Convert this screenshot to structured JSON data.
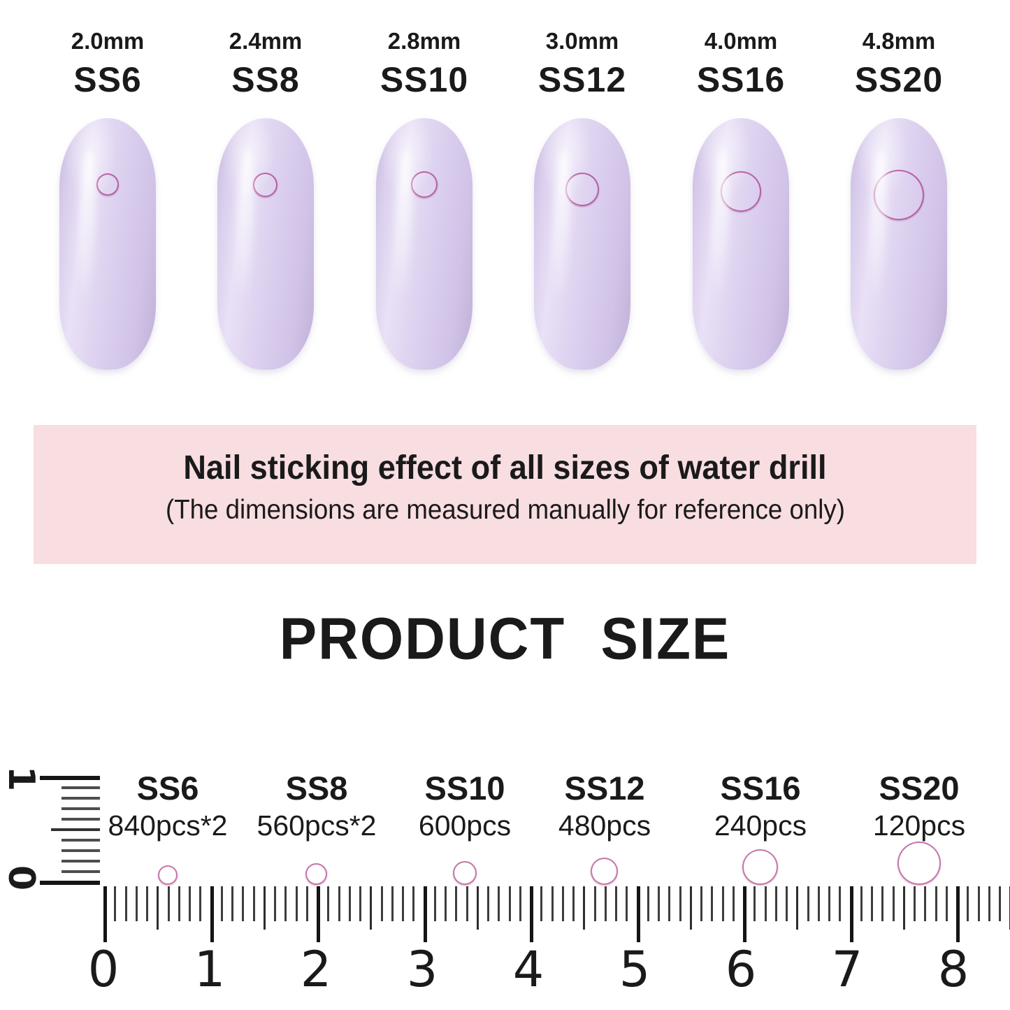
{
  "top_nails": {
    "items": [
      {
        "mm": "2.0mm",
        "ss": "SS6"
      },
      {
        "mm": "2.4mm",
        "ss": "SS8"
      },
      {
        "mm": "2.8mm",
        "ss": "SS10"
      },
      {
        "mm": "3.0mm",
        "ss": "SS12"
      },
      {
        "mm": "4.0mm",
        "ss": "SS16"
      },
      {
        "mm": "4.8mm",
        "ss": "SS20"
      }
    ]
  },
  "banner": {
    "title": "Nail sticking effect of all sizes of water drill",
    "subtitle": "(The dimensions are measured manually for reference only)",
    "bg_color": "#f8dde1"
  },
  "section_title": "PRODUCT SIZE",
  "size_chart": {
    "items": [
      {
        "ss": "SS6",
        "qty": "840pcs*2"
      },
      {
        "ss": "SS8",
        "qty": "560pcs*2"
      },
      {
        "ss": "SS10",
        "qty": "600pcs"
      },
      {
        "ss": "SS12",
        "qty": "480pcs"
      },
      {
        "ss": "SS16",
        "qty": "240pcs"
      },
      {
        "ss": "SS20",
        "qty": "120pcs"
      }
    ],
    "ruler_numbers": [
      "0",
      "1",
      "2",
      "3",
      "4",
      "5",
      "6",
      "7",
      "8"
    ],
    "vertical_ruler_numbers": [
      "1",
      "0"
    ]
  },
  "colors": {
    "nail": "#ddd2ed",
    "stone": "#e1219f",
    "banner_bg": "#f8dde1",
    "text": "#1a1a1a"
  }
}
